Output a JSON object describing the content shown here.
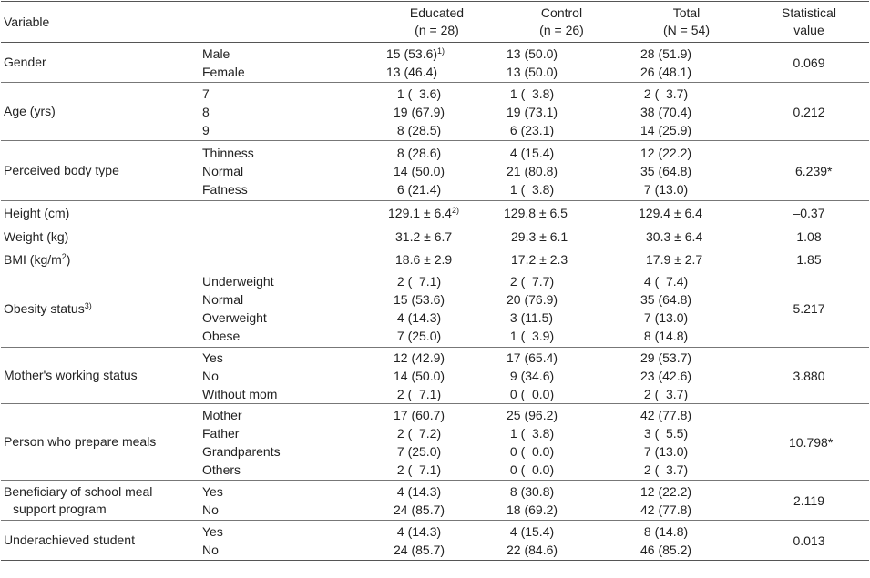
{
  "header": {
    "variable": "Variable",
    "educated": "Educated",
    "educated_n": "(n = 28)",
    "control": "Control",
    "control_n": "(n = 26)",
    "total": "Total",
    "total_n": "(N = 54)",
    "stat": "Statistical",
    "stat2": "value"
  },
  "rows": {
    "gender": {
      "label": "Gender",
      "subs": [
        "Male",
        "Female"
      ],
      "educated": [
        "15 (53.6)",
        "13 (46.4)"
      ],
      "educated_sup": "1)",
      "control": [
        "13 (50.0)",
        "13 (50.0)"
      ],
      "total": [
        "28 (51.9)",
        "26 (48.1)"
      ],
      "stat": "0.069"
    },
    "age": {
      "label": "Age (yrs)",
      "subs": [
        "7",
        "8",
        "9"
      ],
      "educated": [
        " 1 (  3.6)",
        "19 (67.9)",
        " 8 (28.5)"
      ],
      "control": [
        " 1 (  3.8)",
        "19 (73.1)",
        " 6 (23.1)"
      ],
      "total": [
        " 2 (  3.7)",
        "38 (70.4)",
        "14 (25.9)"
      ],
      "stat": "0.212"
    },
    "body": {
      "label": "Perceived body type",
      "subs": [
        "Thinness",
        "Normal",
        "Fatness"
      ],
      "educated": [
        " 8 (28.6)",
        "14 (50.0)",
        " 6 (21.4)"
      ],
      "control": [
        " 4 (15.4)",
        "21 (80.8)",
        " 1 (  3.8)"
      ],
      "total": [
        "12 (22.2)",
        "35 (64.8)",
        " 7 (13.0)"
      ],
      "stat": "6.239*"
    },
    "height": {
      "label": "Height (cm)",
      "educated": "129.1 ± 6.4",
      "educated_sup": "2)",
      "control": "129.8 ± 6.5",
      "total": "129.4 ± 6.4",
      "stat": "–0.37"
    },
    "weight": {
      "label": "Weight (kg)",
      "educated": "31.2 ± 6.7",
      "control": "29.3 ± 6.1",
      "total": "30.3 ± 6.4",
      "stat": "1.08"
    },
    "bmi": {
      "label": "BMI (kg/m",
      "label_sup": "2",
      "label_end": ")",
      "educated": "18.6 ± 2.9",
      "control": "17.2 ± 2.3",
      "total": "17.9 ± 2.7",
      "stat": "1.85"
    },
    "obesity": {
      "label": "Obesity status",
      "label_sup": "3)",
      "subs": [
        "Underweight",
        "Normal",
        "Overweight",
        "Obese"
      ],
      "educated": [
        " 2 (  7.1)",
        "15 (53.6)",
        " 4 (14.3)",
        " 7 (25.0)"
      ],
      "control": [
        " 2 (  7.7)",
        "20 (76.9)",
        " 3 (11.5)",
        " 1 (  3.9)"
      ],
      "total": [
        " 4 (  7.4)",
        "35 (64.8)",
        " 7 (13.0)",
        " 8 (14.8)"
      ],
      "stat": "5.217"
    },
    "mother": {
      "label": "Mother's working status",
      "subs": [
        "Yes",
        "No",
        "Without mom"
      ],
      "educated": [
        "12 (42.9)",
        "14 (50.0)",
        " 2 (  7.1)"
      ],
      "control": [
        "17 (65.4)",
        " 9 (34.6)",
        " 0 (  0.0)"
      ],
      "total": [
        "29 (53.7)",
        "23 (42.6)",
        " 2 (  3.7)"
      ],
      "stat": "3.880"
    },
    "meals": {
      "label": "Person who prepare meals",
      "subs": [
        "Mother",
        "Father",
        "Grandparents",
        "Others"
      ],
      "educated": [
        "17 (60.7)",
        " 2 (  7.2)",
        " 7 (25.0)",
        " 2 (  7.1)"
      ],
      "control": [
        "25 (96.2)",
        " 1 (  3.8)",
        " 0 (  0.0)",
        " 0 (  0.0)"
      ],
      "total": [
        "42 (77.8)",
        " 3 (  5.5)",
        " 7 (13.0)",
        " 2 (  3.7)"
      ],
      "stat": "10.798*"
    },
    "meal_program": {
      "label": "Beneficiary of school meal",
      "label2": "support program",
      "subs": [
        "Yes",
        "No"
      ],
      "educated": [
        " 4 (14.3)",
        "24 (85.7)"
      ],
      "control": [
        " 8 (30.8)",
        "18 (69.2)"
      ],
      "total": [
        "12 (22.2)",
        "42 (77.8)"
      ],
      "stat": "2.119"
    },
    "under": {
      "label": "Underachieved student",
      "subs": [
        "Yes",
        "No"
      ],
      "educated": [
        " 4 (14.3)",
        "24 (85.7)"
      ],
      "control": [
        " 4 (15.4)",
        "22 (84.6)"
      ],
      "total": [
        " 8 (14.8)",
        "46 (85.2)"
      ],
      "stat": "0.013"
    }
  }
}
